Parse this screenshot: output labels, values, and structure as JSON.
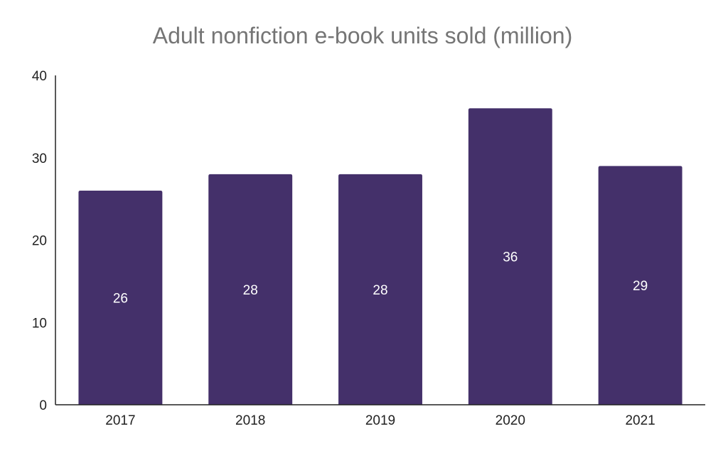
{
  "chart_data": {
    "type": "bar",
    "title": "Adult nonfiction e-book units sold (million)",
    "xlabel": "",
    "ylabel": "",
    "categories": [
      "2017",
      "2018",
      "2019",
      "2020",
      "2021"
    ],
    "values": [
      26,
      28,
      28,
      36,
      29
    ],
    "data_labels": [
      "26",
      "28",
      "28",
      "36",
      "29"
    ],
    "ylim": [
      0,
      40
    ],
    "yticks": [
      0,
      10,
      20,
      30,
      40
    ],
    "ytick_labels": [
      "0",
      "10",
      "20",
      "30",
      "40"
    ],
    "bar_color": "#44306a",
    "grid": false,
    "legend": "none"
  }
}
